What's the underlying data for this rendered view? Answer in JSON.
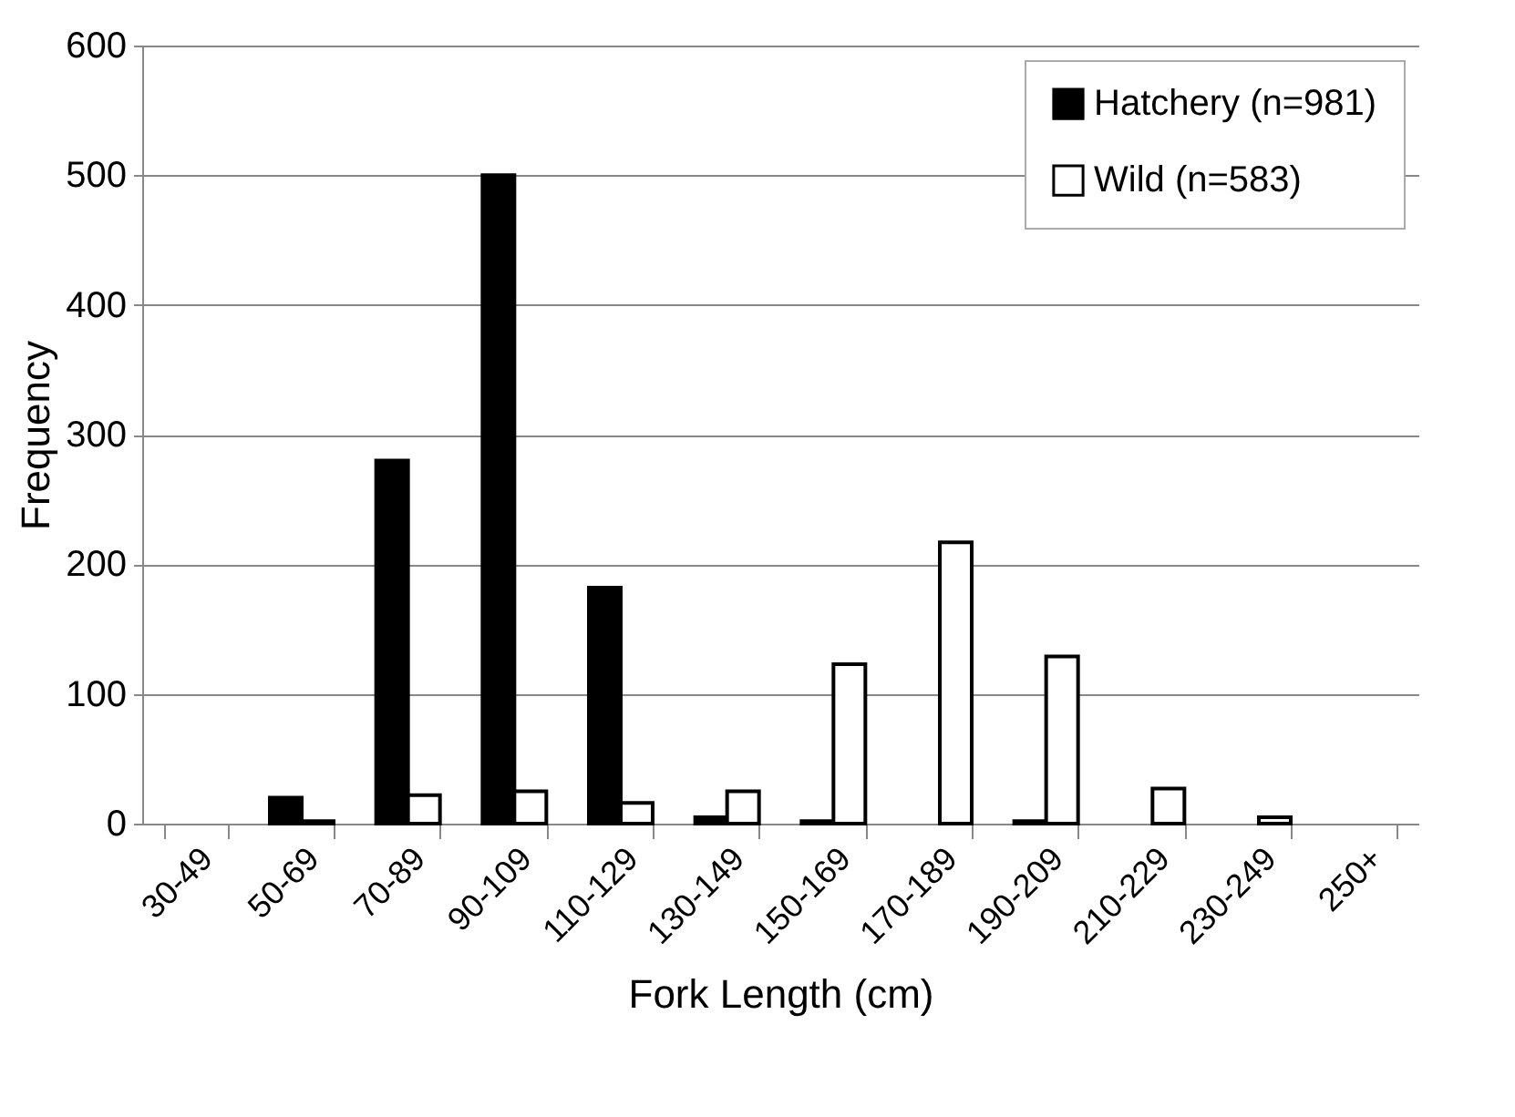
{
  "chart_data": {
    "type": "bar",
    "xlabel": "Fork Length (cm)",
    "ylabel": "Frequency",
    "categories": [
      "30-49",
      "50-69",
      "70-89",
      "90-109",
      "110-129",
      "130-149",
      "150-169",
      "170-189",
      "190-209",
      "210-229",
      "230-249",
      "250+"
    ],
    "series": [
      {
        "name": "Hatchery (n=981)",
        "color": "#000000",
        "values": [
          0,
          20,
          280,
          500,
          182,
          5,
          2,
          0,
          2,
          0,
          0,
          0
        ]
      },
      {
        "name": "Wild (n=583)",
        "color": "#ffffff",
        "values": [
          0,
          2,
          22,
          25,
          16,
          25,
          123,
          217,
          129,
          27,
          5,
          0
        ]
      }
    ],
    "ylim": [
      0,
      600
    ],
    "yticks": [
      0,
      100,
      200,
      300,
      400,
      500,
      600
    ],
    "grid": "y",
    "legend": "top right"
  }
}
